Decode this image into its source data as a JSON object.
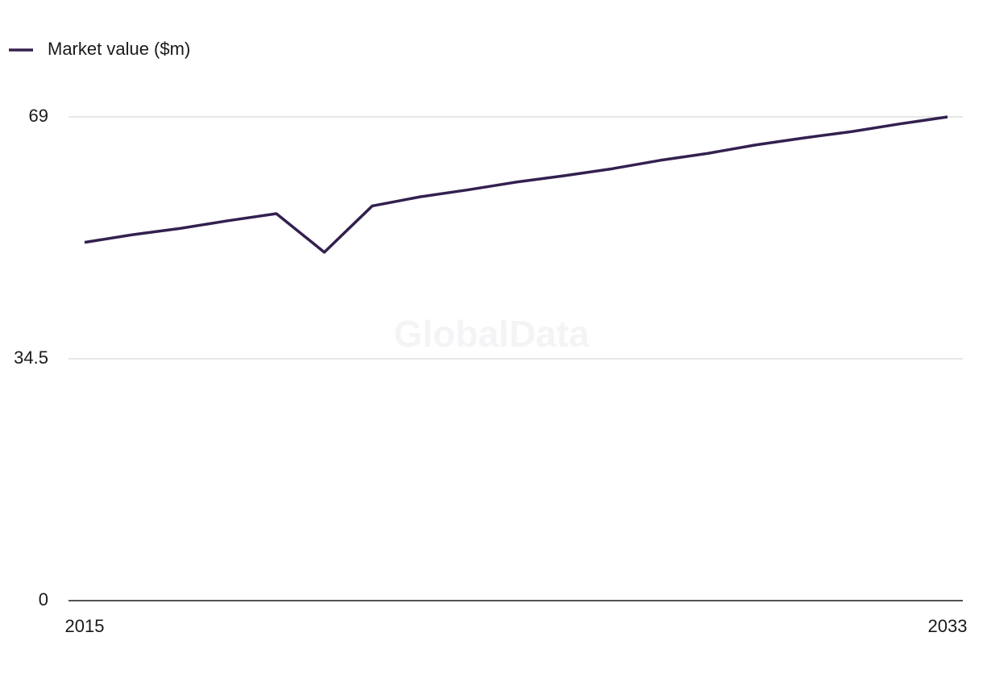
{
  "chart_data": {
    "type": "line",
    "legend_position": "top-left",
    "watermark": "GlobalData",
    "x": [
      2015,
      2016,
      2017,
      2018,
      2019,
      2020,
      2021,
      2022,
      2023,
      2024,
      2025,
      2026,
      2027,
      2028,
      2029,
      2030,
      2031,
      2032,
      2033
    ],
    "series": [
      {
        "name": "Market value ($m)",
        "color": "#33204f",
        "values": [
          51.1,
          52.2,
          53.1,
          54.2,
          55.2,
          49.7,
          56.3,
          57.6,
          58.6,
          59.7,
          60.6,
          61.6,
          62.8,
          63.8,
          65.0,
          66.0,
          66.9,
          68.0,
          69
        ]
      }
    ],
    "xlim": [
      2015,
      2033
    ],
    "xticks": [
      2015,
      2033
    ],
    "ylim": [
      0,
      69
    ],
    "yticks": [
      0,
      34.5,
      69
    ],
    "grid": true
  }
}
